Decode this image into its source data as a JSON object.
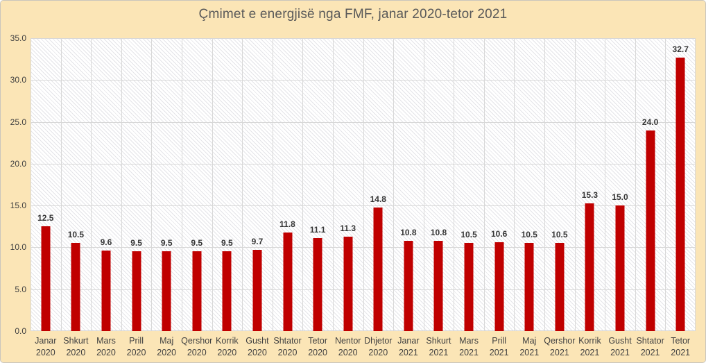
{
  "window": {
    "background_color": "#fbe5b6",
    "border_color": "#c9c5bd"
  },
  "chart_data": {
    "type": "bar",
    "title": "Çmimet e energjisë nga FMF, janar 2020-tetor 2021",
    "categories": [
      "Janar 2020",
      "Shkurt 2020",
      "Mars 2020",
      "Prill 2020",
      "Maj 2020",
      "Qershor 2020",
      "Korrik 2020",
      "Gusht 2020",
      "Shtator 2020",
      "Tetor 2020",
      "Nentor 2020",
      "Dhjetor 2020",
      "Janar 2021",
      "Shkurt 2021",
      "Mars 2021",
      "Prill 2021",
      "Maj 2021",
      "Qershor 2021",
      "Korrik 2021",
      "Gusht 2021",
      "Shtator 2021",
      "Tetor 2021"
    ],
    "values": [
      12.5,
      10.5,
      9.6,
      9.5,
      9.5,
      9.5,
      9.5,
      9.7,
      11.8,
      11.1,
      11.3,
      14.8,
      10.8,
      10.8,
      10.5,
      10.6,
      10.5,
      10.5,
      15.3,
      15.0,
      24.0,
      32.7
    ],
    "value_labels": [
      "12.5",
      "10.5",
      "9.6",
      "9.5",
      "9.5",
      "9.5",
      "9.5",
      "9.7",
      "11.8",
      "11.1",
      "11.3",
      "14.8",
      "10.8",
      "10.8",
      "10.5",
      "10.6",
      "10.5",
      "10.5",
      "15.3",
      "15.0",
      "24.0",
      "32.7"
    ],
    "y_ticks": [
      0,
      5,
      10,
      15,
      20,
      25,
      30,
      35
    ],
    "y_tick_labels": [
      "0.0",
      "5.0",
      "10.0",
      "15.0",
      "20.0",
      "25.0",
      "30.0",
      "35.0"
    ],
    "ylim": [
      0,
      35
    ],
    "xlabel": "",
    "ylabel": "",
    "legend": "none",
    "grid": true,
    "bar_color": "#c00000",
    "plot_background": "#ffffff",
    "hatch_pattern": "light-downward-diagonal",
    "gridline_color": "#d8d8d8",
    "title_color": "#595959",
    "axis_label_color": "#404040",
    "data_label_color": "#363636"
  }
}
